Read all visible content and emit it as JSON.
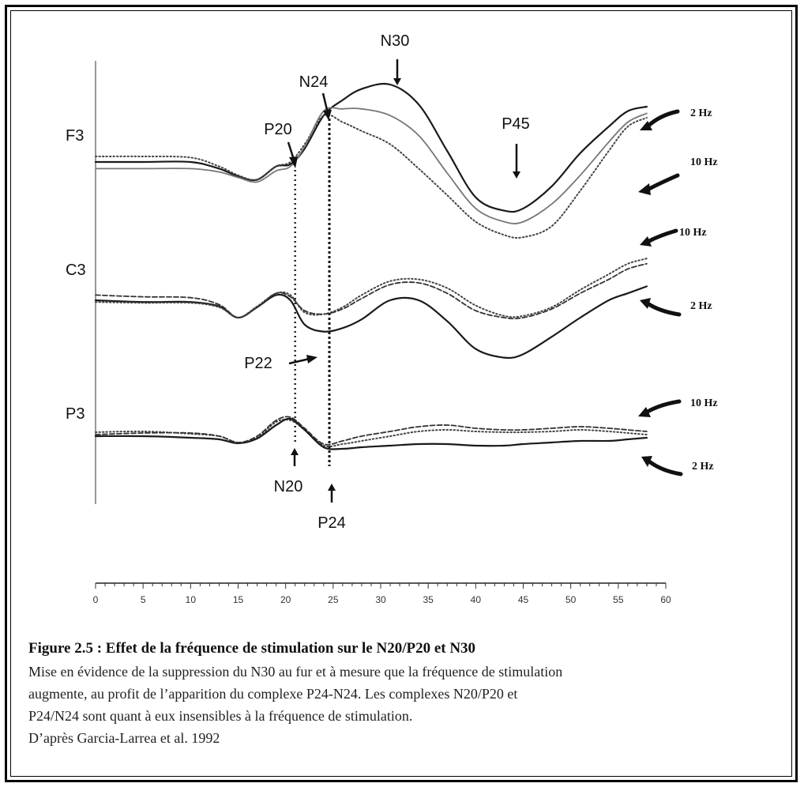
{
  "chart_data": {
    "type": "line",
    "x_unit": "ms",
    "xlim": [
      0,
      60
    ],
    "x_ticks": [
      "0",
      "5",
      "10",
      "15",
      "20",
      "25",
      "30",
      "35",
      "40",
      "45",
      "50",
      "55",
      "60"
    ],
    "channels": [
      {
        "name": "F3",
        "series": [
          {
            "name": "2 Hz",
            "style": "solid",
            "x": [
              0,
              5,
              10,
              13,
              15,
              17,
              19,
              20.5,
              22,
              24,
              26,
              28,
              31,
              34,
              37,
              40,
              43,
              45,
              48,
              51,
              54,
              56,
              58
            ],
            "y": [
              0,
              0,
              0,
              -0.6,
              -1.3,
              -1.6,
              -0.4,
              -0.2,
              1.2,
              4.2,
              5.6,
              6.6,
              7.0,
              5.2,
              1.0,
              -3.2,
              -4.4,
              -4.2,
              -2.2,
              0.8,
              3.2,
              4.6,
              5.0
            ]
          },
          {
            "name": "10 Hz",
            "style": "dotted",
            "x": [
              0,
              5,
              10,
              13,
              15,
              17,
              19,
              20.5,
              22,
              24,
              26,
              28,
              31,
              34,
              37,
              40,
              43,
              45,
              48,
              51,
              54,
              56,
              58
            ],
            "y": [
              0.5,
              0.5,
              0.4,
              -0.4,
              -1.2,
              -1.6,
              -0.4,
              0,
              1.6,
              4.2,
              3.6,
              2.8,
              1.6,
              -0.6,
              -3.0,
              -5.4,
              -6.6,
              -6.8,
              -5.8,
              -2.6,
              1.0,
              3.2,
              4.0
            ]
          },
          {
            "name": "",
            "style": "solid-light",
            "x": [
              0,
              5,
              10,
              13,
              15,
              17,
              19,
              20.5,
              22,
              24,
              26,
              28,
              31,
              34,
              37,
              40,
              43,
              45,
              48,
              51,
              54,
              56,
              58
            ],
            "y": [
              -0.6,
              -0.6,
              -0.6,
              -0.9,
              -1.4,
              -1.8,
              -0.8,
              -0.4,
              1.4,
              4.6,
              4.8,
              4.8,
              4.2,
              2.4,
              -1.0,
              -4.2,
              -5.4,
              -5.4,
              -3.8,
              -1.2,
              1.8,
              3.6,
              4.4
            ]
          }
        ]
      },
      {
        "name": "C3",
        "series": [
          {
            "name": "2 Hz",
            "style": "solid",
            "x": [
              0,
              5,
              10,
              13,
              15,
              17,
              19,
              20.5,
              22,
              24,
              26,
              28,
              31,
              34,
              37,
              40,
              43,
              45,
              48,
              51,
              54,
              56,
              58
            ],
            "y": [
              0,
              -0.2,
              -0.2,
              -0.7,
              -2.0,
              -0.8,
              0.6,
              0,
              -2.8,
              -3.6,
              -3.2,
              -2.2,
              0,
              0,
              -2.4,
              -5.6,
              -6.6,
              -6.2,
              -4.2,
              -2.0,
              0,
              0.8,
              1.6
            ]
          },
          {
            "name": "10 Hz",
            "style": "dotted",
            "x": [
              0,
              5,
              10,
              13,
              15,
              17,
              19,
              20.5,
              22,
              24,
              26,
              28,
              31,
              34,
              37,
              40,
              43,
              45,
              48,
              51,
              54,
              56,
              58
            ],
            "y": [
              -0.2,
              -0.3,
              -0.3,
              -0.8,
              -2.0,
              -0.7,
              0.8,
              0.6,
              -1.4,
              -1.6,
              -0.8,
              0.6,
              2.2,
              2.4,
              1.4,
              -0.6,
              -1.8,
              -1.8,
              -0.8,
              1.2,
              3.0,
              4.2,
              4.8
            ]
          },
          {
            "name": "",
            "style": "dashed",
            "x": [
              0,
              5,
              10,
              13,
              15,
              17,
              19,
              20.5,
              22,
              24,
              26,
              28,
              31,
              34,
              37,
              40,
              43,
              45,
              48,
              51,
              54,
              56,
              58
            ],
            "y": [
              0.6,
              0.4,
              0.3,
              -0.5,
              -2.0,
              -0.8,
              0.8,
              0.4,
              -1.2,
              -1.6,
              -1.0,
              0.2,
              1.8,
              2.0,
              0.8,
              -1.2,
              -2.0,
              -2.0,
              -1.0,
              0.8,
              2.4,
              3.6,
              4.2
            ]
          }
        ]
      },
      {
        "name": "P3",
        "series": [
          {
            "name": "10 Hz",
            "style": "dotted",
            "x": [
              0,
              5,
              10,
              13,
              15,
              17,
              19,
              20.5,
              22,
              24,
              26,
              28,
              31,
              34,
              37,
              40,
              43,
              45,
              48,
              51,
              54,
              56,
              58
            ],
            "y": [
              0.5,
              0.6,
              0.3,
              0,
              -0.8,
              -0.2,
              1.8,
              2.0,
              0.8,
              -1.2,
              -1.0,
              -0.6,
              0,
              0.6,
              0.8,
              0.6,
              0.5,
              0.5,
              0.6,
              0.8,
              0.6,
              0.4,
              0.2
            ]
          },
          {
            "name": "2 Hz",
            "style": "solid",
            "x": [
              0,
              5,
              10,
              13,
              15,
              17,
              19,
              20.5,
              22,
              24,
              26,
              28,
              31,
              34,
              37,
              40,
              43,
              45,
              48,
              51,
              54,
              56,
              58
            ],
            "y": [
              0,
              0,
              -0.2,
              -0.4,
              -0.9,
              -0.3,
              1.4,
              2.2,
              0.8,
              -1.4,
              -1.6,
              -1.4,
              -1.2,
              -1.0,
              -1.0,
              -1.2,
              -1.2,
              -1.0,
              -0.8,
              -0.6,
              -0.6,
              -0.4,
              -0.2
            ]
          },
          {
            "name": "",
            "style": "dashed",
            "x": [
              0,
              5,
              10,
              13,
              15,
              17,
              19,
              20.5,
              22,
              24,
              26,
              28,
              31,
              34,
              37,
              40,
              43,
              45,
              48,
              51,
              54,
              56,
              58
            ],
            "y": [
              0.2,
              0.4,
              0.4,
              0,
              -0.8,
              0,
              2.0,
              2.4,
              1.0,
              -1.0,
              -0.6,
              0,
              0.6,
              1.2,
              1.4,
              1.0,
              0.8,
              0.8,
              1.0,
              1.2,
              1.0,
              0.8,
              0.6
            ]
          }
        ]
      }
    ],
    "peak_labels": [
      "N30",
      "N24",
      "P20",
      "P45",
      "P22",
      "N20",
      "P24"
    ],
    "frequency_labels": [
      "2 Hz",
      "10 Hz",
      "10 Hz",
      "2 Hz",
      "10 Hz",
      "2 Hz"
    ]
  },
  "caption": {
    "title": "Figure 2.5 : Effet de la fréquence de stimulation sur le N20/P20 et N30",
    "line1": "Mise en évidence de la suppression du N30 au fur et à mesure que la fréquence de stimulation",
    "line2": "augmente, au profit de l’apparition du complexe P24-N24. Les complexes N20/P20 et",
    "line3": "P24/N24 sont quant à eux insensibles à la fréquence de stimulation.",
    "line4": "D’après Garcia-Larrea et al. 1992"
  }
}
